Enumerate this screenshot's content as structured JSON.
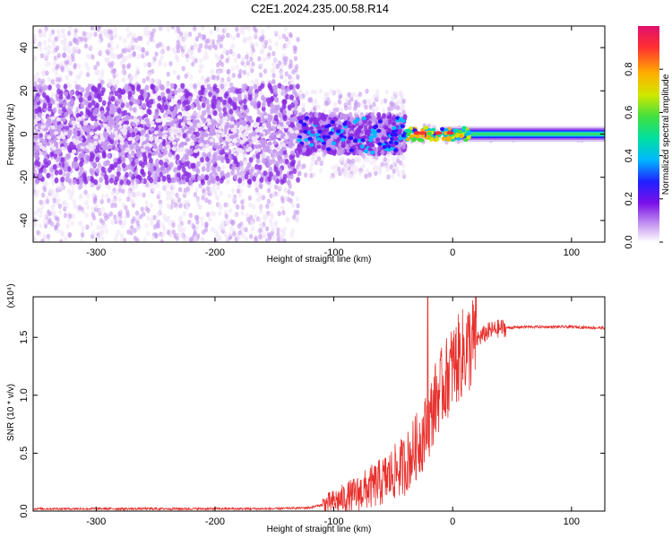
{
  "title": "C2E1.2024.235.00.58.R14",
  "chart_data": [
    {
      "type": "heatmap",
      "panel": "spectrogram",
      "xlabel": "Height of straight line (km)",
      "ylabel": "Frequency (Hz)",
      "xlim": [
        -353,
        128
      ],
      "ylim": [
        -50,
        50
      ],
      "xticks": [
        -300,
        -200,
        -100,
        0,
        100
      ],
      "yticks": [
        -40,
        -20,
        0,
        20,
        40
      ],
      "colorbar": {
        "label": "Normalized spectral amplitude",
        "range": [
          0.0,
          1.0
        ],
        "ticks": [
          0.0,
          0.2,
          0.4,
          0.6,
          0.8
        ],
        "tick_labels": [
          "0.0",
          "0.2",
          "0.4",
          "0.6",
          "0.8"
        ],
        "colormap": [
          "#f0e4f8",
          "#c69af0",
          "#8a2be2",
          "#3010ff",
          "#00b8ff",
          "#00e0a0",
          "#40e040",
          "#d0e800",
          "#ffb000",
          "#ff3030",
          "#e0106e"
        ]
      },
      "description_zones": [
        {
          "x_range": [
            -353,
            -130
          ],
          "freq_spread": 50,
          "core_amplitude": 0.15,
          "core_halfwidth": 8
        },
        {
          "x_range": [
            -130,
            -40
          ],
          "freq_spread": 20,
          "core_amplitude": 0.5,
          "core_halfwidth": 6
        },
        {
          "x_range": [
            -40,
            15
          ],
          "freq_spread": 4,
          "core_amplitude": 0.9,
          "core_halfwidth": 3
        },
        {
          "x_range": [
            15,
            128
          ],
          "freq_spread": 3,
          "core_amplitude": 0.5,
          "core_halfwidth": 2.5
        }
      ]
    },
    {
      "type": "line",
      "panel": "snr",
      "xlabel": "Height of straight line (km)",
      "ylabel": "SNR (10 * v/v)",
      "y_multiplier": "(x10⁴)",
      "xlim": [
        -353,
        128
      ],
      "ylim": [
        0,
        1.85
      ],
      "xticks": [
        -300,
        -200,
        -100,
        0,
        100
      ],
      "yticks": [
        0.0,
        0.5,
        1.0,
        1.5
      ],
      "ytick_labels": [
        "0.0",
        "0.5",
        "1.0",
        "1.5"
      ],
      "series": [
        {
          "color": "#e8302c",
          "x": [
            -353,
            -300,
            -250,
            -200,
            -150,
            -120,
            -100,
            -80,
            -60,
            -40,
            -25,
            -20,
            -15,
            -10,
            -5,
            0,
            10,
            20,
            30,
            40,
            60,
            80,
            100,
            128
          ],
          "y": [
            0.02,
            0.02,
            0.02,
            0.02,
            0.02,
            0.03,
            0.08,
            0.15,
            0.25,
            0.4,
            0.65,
            0.75,
            0.95,
            1.05,
            1.15,
            1.25,
            1.38,
            1.48,
            1.55,
            1.58,
            1.59,
            1.59,
            1.59,
            1.58
          ],
          "spike": {
            "x": -21,
            "y": 1.9
          }
        }
      ]
    }
  ]
}
